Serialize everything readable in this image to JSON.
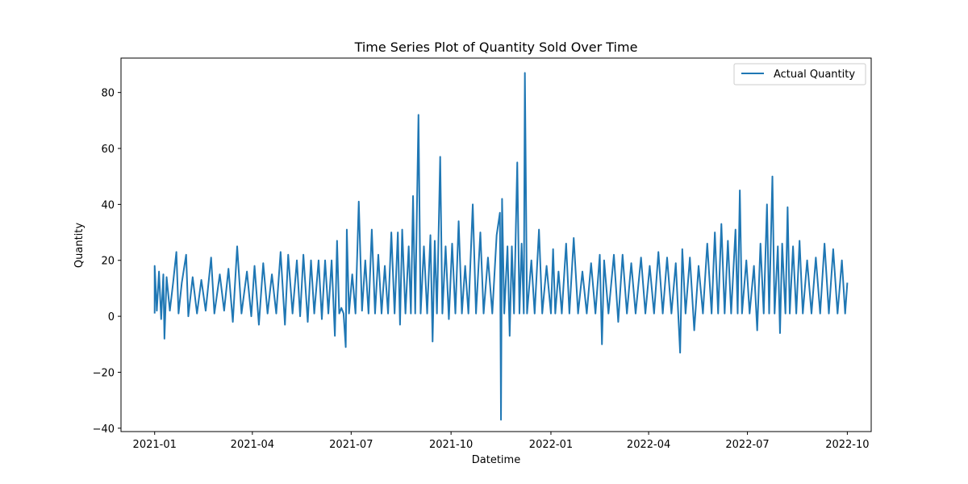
{
  "chart_data": {
    "type": "line",
    "title": "Time Series Plot of Quantity Sold Over Time",
    "xlabel": "Datetime",
    "ylabel": "Quantity",
    "x_range": [
      "2020-12-01",
      "2022-10-23"
    ],
    "ylim": [
      -41.2,
      92.3
    ],
    "x_ticks": [
      {
        "date": "2021-01-01",
        "label": "2021-01"
      },
      {
        "date": "2021-04-01",
        "label": "2021-04"
      },
      {
        "date": "2021-07-01",
        "label": "2021-07"
      },
      {
        "date": "2021-10-01",
        "label": "2021-10"
      },
      {
        "date": "2022-01-01",
        "label": "2022-01"
      },
      {
        "date": "2022-04-01",
        "label": "2022-04"
      },
      {
        "date": "2022-07-01",
        "label": "2022-07"
      },
      {
        "date": "2022-10-01",
        "label": "2022-10"
      }
    ],
    "y_ticks": [
      {
        "value": -40,
        "label": "−40"
      },
      {
        "value": -20,
        "label": "−20"
      },
      {
        "value": 0,
        "label": "0"
      },
      {
        "value": 20,
        "label": "20"
      },
      {
        "value": 40,
        "label": "40"
      },
      {
        "value": 60,
        "label": "60"
      },
      {
        "value": 80,
        "label": "80"
      }
    ],
    "grid": false,
    "legend": {
      "position": "top-right",
      "entries": [
        "Actual Quantity"
      ]
    },
    "series": [
      {
        "name": "Actual Quantity",
        "color": "#1f77b4",
        "points": [
          [
            "2021-01-01",
            1
          ],
          [
            "2021-01-01",
            18
          ],
          [
            "2021-01-03",
            2
          ],
          [
            "2021-01-05",
            16
          ],
          [
            "2021-01-07",
            -1
          ],
          [
            "2021-01-09",
            15
          ],
          [
            "2021-01-10",
            -8
          ],
          [
            "2021-01-12",
            14
          ],
          [
            "2021-01-15",
            2
          ],
          [
            "2021-01-18",
            12
          ],
          [
            "2021-01-21",
            23
          ],
          [
            "2021-01-23",
            1
          ],
          [
            "2021-01-26",
            12
          ],
          [
            "2021-01-30",
            22
          ],
          [
            "2021-02-01",
            0
          ],
          [
            "2021-02-05",
            14
          ],
          [
            "2021-02-09",
            1
          ],
          [
            "2021-02-13",
            13
          ],
          [
            "2021-02-17",
            2
          ],
          [
            "2021-02-22",
            21
          ],
          [
            "2021-02-25",
            1
          ],
          [
            "2021-03-02",
            15
          ],
          [
            "2021-03-06",
            2
          ],
          [
            "2021-03-10",
            17
          ],
          [
            "2021-03-14",
            -2
          ],
          [
            "2021-03-18",
            25
          ],
          [
            "2021-03-22",
            1
          ],
          [
            "2021-03-27",
            16
          ],
          [
            "2021-03-31",
            0
          ],
          [
            "2021-04-03",
            18
          ],
          [
            "2021-04-07",
            -3
          ],
          [
            "2021-04-11",
            19
          ],
          [
            "2021-04-15",
            1
          ],
          [
            "2021-04-19",
            15
          ],
          [
            "2021-04-23",
            1
          ],
          [
            "2021-04-27",
            23
          ],
          [
            "2021-05-01",
            -3
          ],
          [
            "2021-05-04",
            22
          ],
          [
            "2021-05-08",
            1
          ],
          [
            "2021-05-12",
            20
          ],
          [
            "2021-05-15",
            0
          ],
          [
            "2021-05-18",
            22
          ],
          [
            "2021-05-22",
            -2
          ],
          [
            "2021-05-25",
            20
          ],
          [
            "2021-05-28",
            1
          ],
          [
            "2021-06-01",
            20
          ],
          [
            "2021-06-04",
            -1
          ],
          [
            "2021-06-07",
            20
          ],
          [
            "2021-06-10",
            1
          ],
          [
            "2021-06-13",
            20
          ],
          [
            "2021-06-16",
            -7
          ],
          [
            "2021-06-18",
            27
          ],
          [
            "2021-06-20",
            1
          ],
          [
            "2021-06-22",
            3
          ],
          [
            "2021-06-24",
            1
          ],
          [
            "2021-06-26",
            -11
          ],
          [
            "2021-06-27",
            31
          ],
          [
            "2021-06-29",
            1
          ],
          [
            "2021-07-02",
            15
          ],
          [
            "2021-07-05",
            1
          ],
          [
            "2021-07-08",
            41
          ],
          [
            "2021-07-11",
            2
          ],
          [
            "2021-07-14",
            20
          ],
          [
            "2021-07-17",
            1
          ],
          [
            "2021-07-20",
            31
          ],
          [
            "2021-07-23",
            1
          ],
          [
            "2021-07-26",
            22
          ],
          [
            "2021-07-29",
            1
          ],
          [
            "2021-08-01",
            18
          ],
          [
            "2021-08-04",
            1
          ],
          [
            "2021-08-07",
            30
          ],
          [
            "2021-08-10",
            1
          ],
          [
            "2021-08-13",
            30
          ],
          [
            "2021-08-15",
            -3
          ],
          [
            "2021-08-17",
            31
          ],
          [
            "2021-08-20",
            1
          ],
          [
            "2021-08-23",
            25
          ],
          [
            "2021-08-25",
            1
          ],
          [
            "2021-08-27",
            43
          ],
          [
            "2021-08-29",
            1
          ],
          [
            "2021-09-01",
            72
          ],
          [
            "2021-09-03",
            1
          ],
          [
            "2021-09-06",
            25
          ],
          [
            "2021-09-09",
            1
          ],
          [
            "2021-09-12",
            29
          ],
          [
            "2021-09-14",
            -9
          ],
          [
            "2021-09-16",
            27
          ],
          [
            "2021-09-18",
            1
          ],
          [
            "2021-09-21",
            57
          ],
          [
            "2021-09-23",
            1
          ],
          [
            "2021-09-26",
            25
          ],
          [
            "2021-09-29",
            -1
          ],
          [
            "2021-10-02",
            26
          ],
          [
            "2021-10-05",
            1
          ],
          [
            "2021-10-08",
            34
          ],
          [
            "2021-10-11",
            1
          ],
          [
            "2021-10-14",
            18
          ],
          [
            "2021-10-17",
            1
          ],
          [
            "2021-10-21",
            40
          ],
          [
            "2021-10-24",
            1
          ],
          [
            "2021-10-28",
            30
          ],
          [
            "2021-10-31",
            1
          ],
          [
            "2021-11-04",
            21
          ],
          [
            "2021-11-08",
            1
          ],
          [
            "2021-11-12",
            29
          ],
          [
            "2021-11-15",
            37
          ],
          [
            "2021-11-16",
            -37
          ],
          [
            "2021-11-17",
            42
          ],
          [
            "2021-11-19",
            1
          ],
          [
            "2021-11-22",
            25
          ],
          [
            "2021-11-24",
            -7
          ],
          [
            "2021-11-26",
            25
          ],
          [
            "2021-11-28",
            1
          ],
          [
            "2021-12-01",
            55
          ],
          [
            "2021-12-03",
            1
          ],
          [
            "2021-12-05",
            26
          ],
          [
            "2021-12-07",
            1
          ],
          [
            "2021-12-08",
            87
          ],
          [
            "2021-12-10",
            1
          ],
          [
            "2021-12-14",
            20
          ],
          [
            "2021-12-17",
            1
          ],
          [
            "2021-12-21",
            31
          ],
          [
            "2021-12-24",
            1
          ],
          [
            "2021-12-28",
            18
          ],
          [
            "2022-01-01",
            1
          ],
          [
            "2022-01-03",
            24
          ],
          [
            "2022-01-05",
            1
          ],
          [
            "2022-01-08",
            16
          ],
          [
            "2022-01-11",
            1
          ],
          [
            "2022-01-15",
            26
          ],
          [
            "2022-01-18",
            1
          ],
          [
            "2022-01-22",
            28
          ],
          [
            "2022-01-26",
            1
          ],
          [
            "2022-01-30",
            16
          ],
          [
            "2022-02-03",
            1
          ],
          [
            "2022-02-07",
            19
          ],
          [
            "2022-02-11",
            1
          ],
          [
            "2022-02-15",
            22
          ],
          [
            "2022-02-17",
            -10
          ],
          [
            "2022-02-19",
            20
          ],
          [
            "2022-02-23",
            1
          ],
          [
            "2022-02-28",
            22
          ],
          [
            "2022-03-04",
            -2
          ],
          [
            "2022-03-08",
            22
          ],
          [
            "2022-03-12",
            1
          ],
          [
            "2022-03-16",
            19
          ],
          [
            "2022-03-20",
            1
          ],
          [
            "2022-03-25",
            21
          ],
          [
            "2022-03-29",
            1
          ],
          [
            "2022-04-02",
            18
          ],
          [
            "2022-04-06",
            1
          ],
          [
            "2022-04-10",
            23
          ],
          [
            "2022-04-14",
            1
          ],
          [
            "2022-04-18",
            21
          ],
          [
            "2022-04-22",
            1
          ],
          [
            "2022-04-26",
            19
          ],
          [
            "2022-04-30",
            -13
          ],
          [
            "2022-05-02",
            24
          ],
          [
            "2022-05-05",
            1
          ],
          [
            "2022-05-09",
            21
          ],
          [
            "2022-05-13",
            -5
          ],
          [
            "2022-05-17",
            18
          ],
          [
            "2022-05-21",
            1
          ],
          [
            "2022-05-25",
            26
          ],
          [
            "2022-05-29",
            1
          ],
          [
            "2022-06-01",
            30
          ],
          [
            "2022-06-04",
            1
          ],
          [
            "2022-06-07",
            33
          ],
          [
            "2022-06-10",
            1
          ],
          [
            "2022-06-13",
            27
          ],
          [
            "2022-06-16",
            1
          ],
          [
            "2022-06-20",
            31
          ],
          [
            "2022-06-22",
            1
          ],
          [
            "2022-06-24",
            45
          ],
          [
            "2022-06-26",
            1
          ],
          [
            "2022-06-30",
            20
          ],
          [
            "2022-07-03",
            1
          ],
          [
            "2022-07-07",
            18
          ],
          [
            "2022-07-10",
            -5
          ],
          [
            "2022-07-13",
            26
          ],
          [
            "2022-07-16",
            1
          ],
          [
            "2022-07-19",
            40
          ],
          [
            "2022-07-21",
            1
          ],
          [
            "2022-07-24",
            50
          ],
          [
            "2022-07-26",
            1
          ],
          [
            "2022-07-29",
            25
          ],
          [
            "2022-07-31",
            -6
          ],
          [
            "2022-08-02",
            26
          ],
          [
            "2022-08-05",
            1
          ],
          [
            "2022-08-07",
            39
          ],
          [
            "2022-08-09",
            1
          ],
          [
            "2022-08-12",
            25
          ],
          [
            "2022-08-15",
            1
          ],
          [
            "2022-08-18",
            27
          ],
          [
            "2022-08-21",
            1
          ],
          [
            "2022-08-25",
            20
          ],
          [
            "2022-08-29",
            1
          ],
          [
            "2022-09-02",
            21
          ],
          [
            "2022-09-06",
            1
          ],
          [
            "2022-09-10",
            26
          ],
          [
            "2022-09-14",
            1
          ],
          [
            "2022-09-18",
            24
          ],
          [
            "2022-09-22",
            1
          ],
          [
            "2022-09-26",
            20
          ],
          [
            "2022-09-29",
            1
          ],
          [
            "2022-10-01",
            12
          ]
        ]
      }
    ]
  }
}
